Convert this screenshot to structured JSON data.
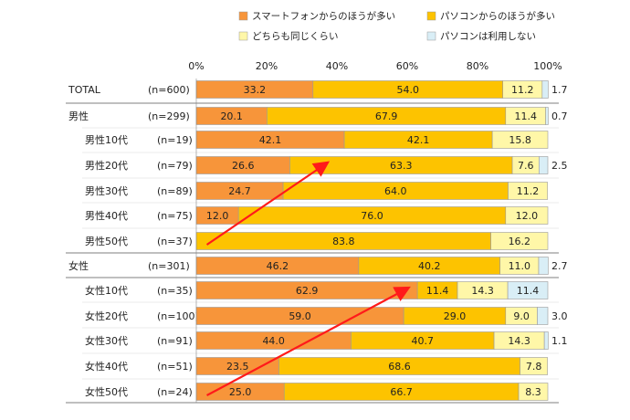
{
  "chart_data": {
    "type": "bar",
    "stacked": true,
    "orientation": "horizontal",
    "xlim": [
      0,
      100
    ],
    "ticks": [
      "0%",
      "20%",
      "40%",
      "60%",
      "80%",
      "100%"
    ],
    "legend_position": "top",
    "series": [
      {
        "name": "スマートフォンからのほうが多い",
        "color": "#F7953A"
      },
      {
        "name": "パソコンからのほうが多い",
        "color": "#FDC300"
      },
      {
        "name": "どちらも同じくらい",
        "color": "#FFF7A8"
      },
      {
        "name": "パソコンは利用しない",
        "color": "#D9EEF6"
      }
    ],
    "rows": [
      {
        "label": "TOTAL",
        "n": "(n=600)",
        "values": [
          33.2,
          54.0,
          11.2,
          1.7
        ],
        "labels": [
          "33.2",
          "54.0",
          "11.2",
          "1.7"
        ],
        "group": "top"
      },
      {
        "label": "男性",
        "n": "(n=299)",
        "values": [
          20.1,
          67.9,
          11.4,
          0.7
        ],
        "labels": [
          "20.1",
          "67.9",
          "11.4",
          "0.7"
        ],
        "group": "top"
      },
      {
        "label": "男性10代",
        "n": "(n=19)",
        "values": [
          42.1,
          42.1,
          15.8,
          0
        ],
        "labels": [
          "42.1",
          "42.1",
          "15.8",
          ""
        ],
        "group": "sub"
      },
      {
        "label": "男性20代",
        "n": "(n=79)",
        "values": [
          26.6,
          63.3,
          7.6,
          2.5
        ],
        "labels": [
          "26.6",
          "63.3",
          "7.6",
          "2.5"
        ],
        "group": "sub"
      },
      {
        "label": "男性30代",
        "n": "(n=89)",
        "values": [
          24.7,
          64.0,
          11.2,
          0
        ],
        "labels": [
          "24.7",
          "64.0",
          "11.2",
          ""
        ],
        "group": "sub"
      },
      {
        "label": "男性40代",
        "n": "(n=75)",
        "values": [
          12.0,
          76.0,
          12.0,
          0
        ],
        "labels": [
          "12.0",
          "76.0",
          "12.0",
          ""
        ],
        "group": "sub"
      },
      {
        "label": "男性50代",
        "n": "(n=37)",
        "values": [
          0,
          83.8,
          16.2,
          0
        ],
        "labels": [
          "",
          "83.8",
          "16.2",
          ""
        ],
        "group": "sub"
      },
      {
        "label": "女性",
        "n": "(n=301)",
        "values": [
          46.2,
          40.2,
          11.0,
          2.7
        ],
        "labels": [
          "46.2",
          "40.2",
          "11.0",
          "2.7"
        ],
        "group": "top"
      },
      {
        "label": "女性10代",
        "n": "(n=35)",
        "values": [
          62.9,
          11.4,
          14.3,
          11.4
        ],
        "labels": [
          "62.9",
          "11.4",
          "14.3",
          "11.4"
        ],
        "group": "sub"
      },
      {
        "label": "女性20代",
        "n": "(n=100)",
        "values": [
          59.0,
          29.0,
          9.0,
          3.0
        ],
        "labels": [
          "59.0",
          "29.0",
          "9.0",
          "3.0"
        ],
        "group": "sub"
      },
      {
        "label": "女性30代",
        "n": "(n=91)",
        "values": [
          44.0,
          40.7,
          14.3,
          1.1
        ],
        "labels": [
          "44.0",
          "40.7",
          "14.3",
          "1.1"
        ],
        "group": "sub"
      },
      {
        "label": "女性40代",
        "n": "(n=51)",
        "values": [
          23.5,
          68.6,
          7.8,
          0
        ],
        "labels": [
          "23.5",
          "68.6",
          "7.8",
          ""
        ],
        "group": "sub"
      },
      {
        "label": "女性50代",
        "n": "(n=24)",
        "values": [
          25.0,
          66.7,
          8.3,
          0
        ],
        "labels": [
          "25.0",
          "66.7",
          "8.3",
          ""
        ],
        "group": "sub"
      }
    ],
    "annotations": [
      {
        "type": "arrow",
        "color": "#FF1A1A",
        "from": {
          "row": "男性50代",
          "value": 3
        },
        "to": {
          "row": "男性20代",
          "value": 37
        }
      },
      {
        "type": "arrow",
        "color": "#FF1A1A",
        "from": {
          "row": "女性50代",
          "value": 3
        },
        "to": {
          "row": "女性10代",
          "value": 60
        }
      }
    ]
  }
}
